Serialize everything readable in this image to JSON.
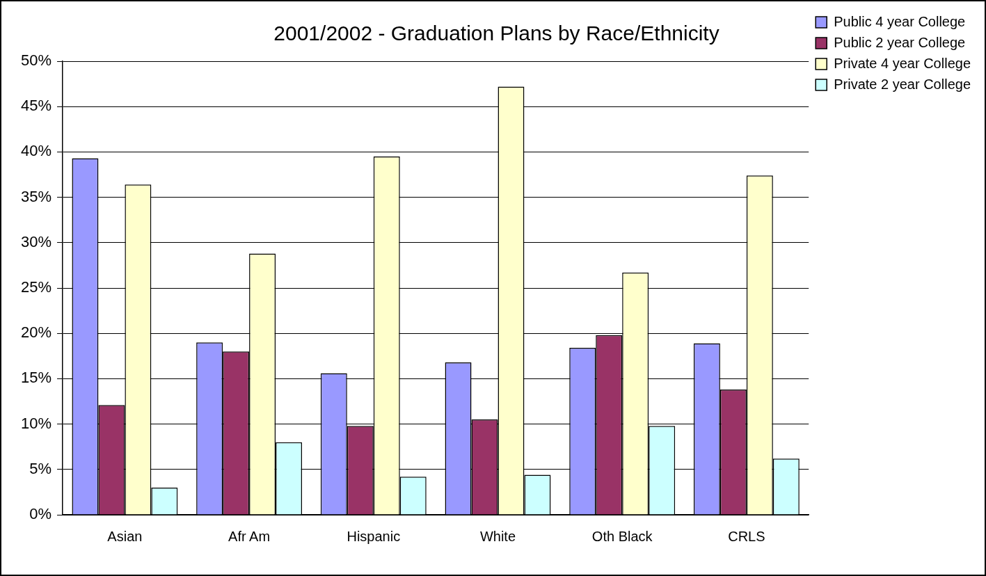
{
  "chart_data": {
    "type": "bar",
    "title": "2001/2002 - Graduation Plans by Race/Ethnicity",
    "categories": [
      "Asian",
      "Afr Am",
      "Hispanic",
      "White",
      "Oth Black",
      "CRLS"
    ],
    "series": [
      {
        "name": "Public 4 year College",
        "color": "#9999ff",
        "values": [
          39.3,
          19.0,
          15.6,
          16.8,
          18.4,
          18.9
        ]
      },
      {
        "name": "Public 2 year College",
        "color": "#993366",
        "values": [
          12.1,
          18.0,
          9.8,
          10.5,
          19.8,
          13.8
        ]
      },
      {
        "name": "Private 4 year College",
        "color": "#ffffcc",
        "values": [
          36.4,
          28.8,
          39.5,
          47.2,
          26.7,
          37.4
        ]
      },
      {
        "name": "Private 2 year College",
        "color": "#ccffff",
        "values": [
          3.0,
          8.0,
          4.2,
          4.4,
          9.8,
          6.2
        ]
      }
    ],
    "ylim": [
      0,
      50
    ],
    "yticks": [
      {
        "value": 0,
        "label": "0%"
      },
      {
        "value": 5,
        "label": "5%"
      },
      {
        "value": 10,
        "label": "10%"
      },
      {
        "value": 15,
        "label": "15%"
      },
      {
        "value": 20,
        "label": "20%"
      },
      {
        "value": 25,
        "label": "25%"
      },
      {
        "value": 30,
        "label": "30%"
      },
      {
        "value": 35,
        "label": "35%"
      },
      {
        "value": 40,
        "label": "40%"
      },
      {
        "value": 45,
        "label": "45%"
      },
      {
        "value": 50,
        "label": "50%"
      }
    ],
    "grid": "y",
    "legend": "right"
  }
}
